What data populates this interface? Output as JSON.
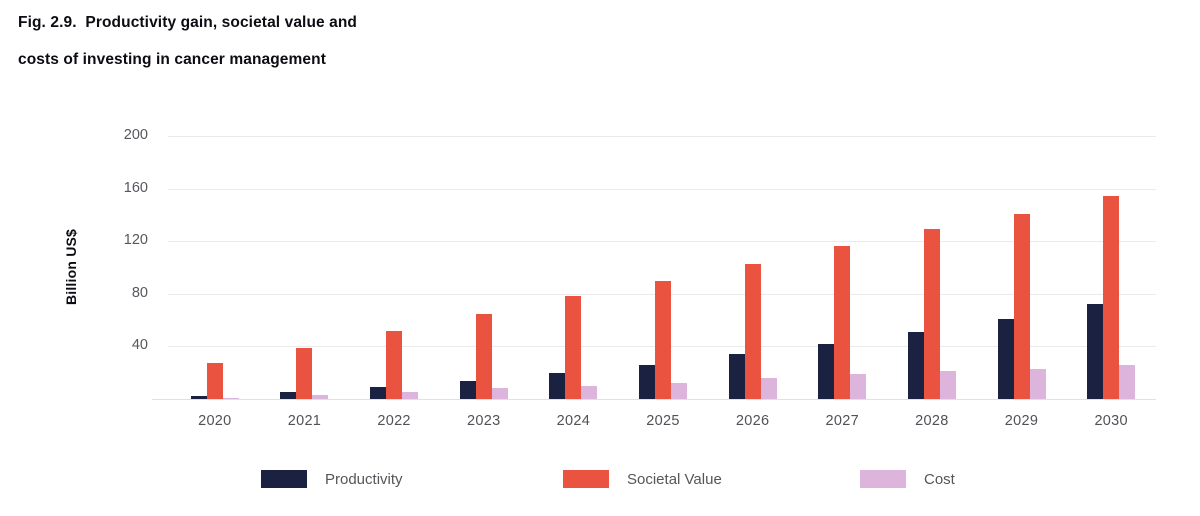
{
  "figure": {
    "title_line1": "Fig. 2.9.  Productivity gain, societal value and",
    "title_line2": "costs of investing in cancer management"
  },
  "chart_data": {
    "type": "bar",
    "title": "Fig. 2.9. Productivity gain, societal value and costs of investing in cancer management",
    "xlabel": "",
    "ylabel": "Billion US$",
    "categories": [
      "2020",
      "2021",
      "2022",
      "2023",
      "2024",
      "2025",
      "2026",
      "2027",
      "2028",
      "2029",
      "2030"
    ],
    "series": [
      {
        "name": "Productivity",
        "color": "#1b2140",
        "values": [
          2,
          5,
          9,
          14,
          20,
          26,
          34,
          42,
          51,
          61,
          72
        ]
      },
      {
        "name": "Societal Value",
        "color": "#e95340",
        "values": [
          27,
          39,
          52,
          65,
          78,
          90,
          103,
          116,
          129,
          141,
          154
        ]
      },
      {
        "name": "Cost",
        "color": "#dcb4dc",
        "values": [
          0.5,
          3,
          5,
          8,
          10,
          12,
          16,
          19,
          21,
          23,
          26
        ]
      }
    ],
    "ylim": [
      0,
      200
    ],
    "yticks": [
      40,
      80,
      120,
      160,
      200
    ],
    "grid": true,
    "legend_position": "bottom"
  },
  "colors": {
    "productivity": "#1b2140",
    "societal_value": "#e95340",
    "cost": "#dcb4dc",
    "gridline": "#eaeaed",
    "axis_text": "#55575e"
  }
}
